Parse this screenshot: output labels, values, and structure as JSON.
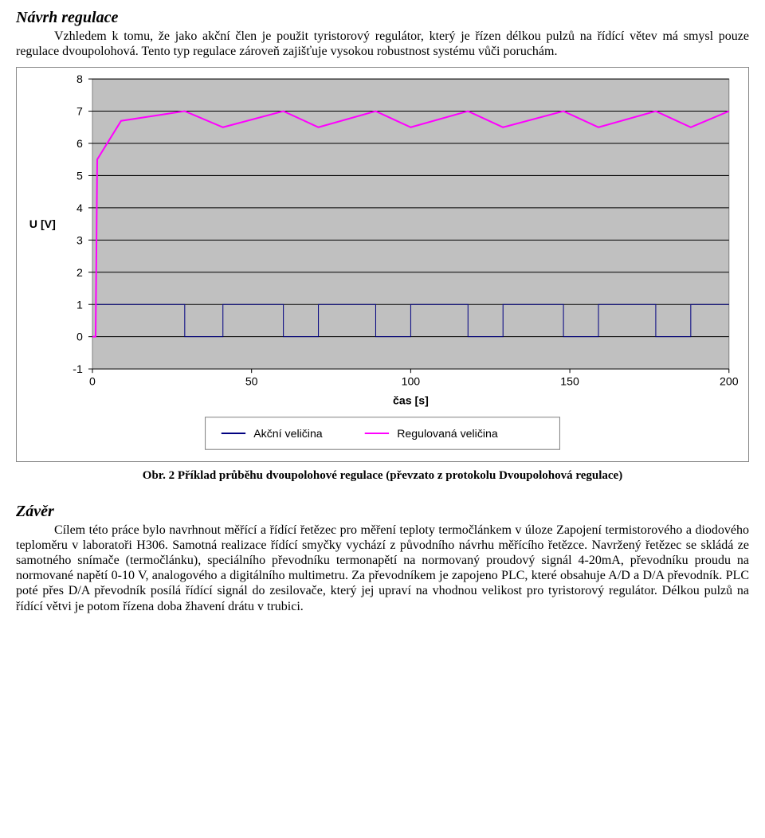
{
  "section1": {
    "heading": "Návrh regulace",
    "para": "Vzhledem k tomu, že jako akční člen je použit tyristorový regulátor, který je řízen délkou pulzů na řídící větev má smysl pouze regulace dvoupolohová. Tento typ regulace zároveň zajišťuje vysokou robustnost systému vůči poruchám."
  },
  "chart": {
    "plot_bg": "#c0c0c0",
    "grid_color": "#000000",
    "y_label": "U [V]",
    "x_label": "čas [s]",
    "tick_font_family": "Arial, sans-serif",
    "tick_font_size": 14,
    "label_font_size": 14,
    "label_font_weight": "bold",
    "xlim": [
      0,
      200
    ],
    "ylim": [
      -1,
      8
    ],
    "xticks": [
      0,
      50,
      100,
      150,
      200
    ],
    "yticks": [
      -1,
      0,
      1,
      2,
      3,
      4,
      5,
      6,
      7,
      8
    ],
    "series": [
      {
        "name": "Akční veličina",
        "color": "#000080",
        "width": 1,
        "points": [
          [
            0,
            0
          ],
          [
            1,
            0
          ],
          [
            1,
            1
          ],
          [
            29,
            1
          ],
          [
            29,
            0
          ],
          [
            41,
            0
          ],
          [
            41,
            1
          ],
          [
            60,
            1
          ],
          [
            60,
            0
          ],
          [
            71,
            0
          ],
          [
            71,
            1
          ],
          [
            89,
            1
          ],
          [
            89,
            0
          ],
          [
            100,
            0
          ],
          [
            100,
            1
          ],
          [
            118,
            1
          ],
          [
            118,
            0
          ],
          [
            129,
            0
          ],
          [
            129,
            1
          ],
          [
            148,
            1
          ],
          [
            148,
            0
          ],
          [
            159,
            0
          ],
          [
            159,
            1
          ],
          [
            177,
            1
          ],
          [
            177,
            0
          ],
          [
            188,
            0
          ],
          [
            188,
            1
          ],
          [
            200,
            1
          ]
        ]
      },
      {
        "name": "Regulovaná veličina",
        "color": "#ff00ff",
        "width": 2,
        "points": [
          [
            0,
            0
          ],
          [
            1,
            0
          ],
          [
            1.5,
            5.5
          ],
          [
            9,
            6.7
          ],
          [
            29,
            7.0
          ],
          [
            41,
            6.5
          ],
          [
            60,
            7.0
          ],
          [
            71,
            6.5
          ],
          [
            89,
            7.0
          ],
          [
            100,
            6.5
          ],
          [
            118,
            7.0
          ],
          [
            129,
            6.5
          ],
          [
            148,
            7.0
          ],
          [
            159,
            6.5
          ],
          [
            177,
            7.0
          ],
          [
            188,
            6.5
          ],
          [
            200,
            7.0
          ]
        ]
      }
    ],
    "legend": [
      {
        "label": "Akční veličina",
        "color": "#000080"
      },
      {
        "label": "Regulovaná veličina",
        "color": "#ff00ff"
      }
    ]
  },
  "caption": "Obr. 2 Příklad průběhu dvoupolohové regulace (převzato z protokolu Dvoupolohová regulace)",
  "section2": {
    "heading": "Závěr",
    "para": "Cílem této práce bylo navrhnout měřící a řídící řetězec pro měření teploty termočlánkem v úloze Zapojení termistorového a diodového teploměru v laboratoři H306. Samotná realizace řídící smyčky vychází z původního návrhu měřícího řetězce. Navržený řetězec se skládá ze samotného snímače (termočlánku), speciálního převodníku termonapětí na normovaný proudový signál 4-20mA, převodníku proudu na normované napětí 0-10 V, analogového a digitálního multimetru. Za převodníkem je zapojeno PLC, které obsahuje A/D a D/A převodník. PLC poté přes D/A převodník posílá řídící signál do zesilovače, který jej upraví na vhodnou velikost pro tyristorový regulátor. Délkou pulzů na řídící větvi je potom řízena doba žhavení drátu v trubici."
  }
}
